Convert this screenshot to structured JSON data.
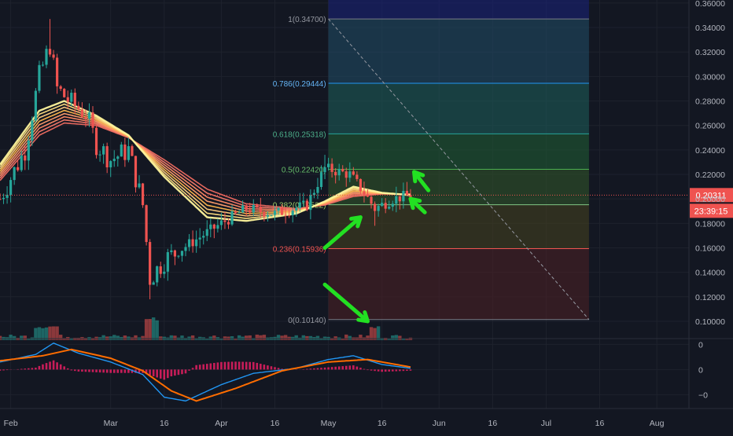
{
  "colors": {
    "background": "#131722",
    "grid": "#1e222d",
    "up": "#26a69a",
    "down": "#ef5350",
    "axis_text": "#b2b5be",
    "price_line": "#ef5350",
    "arrow": "#22e022",
    "macd": "#2196f3",
    "signal": "#ff6d00",
    "hist_pos": "#e91e63"
  },
  "chart_data": [
    {
      "type": "candlestick",
      "title": "",
      "x_axis": {
        "tick_labels": [
          "Feb",
          "Mar",
          "16",
          "Apr",
          "16",
          "May",
          "16",
          "Jun",
          "16",
          "Jul",
          "16",
          "Aug"
        ],
        "dates": [
          "2019-02-01",
          "2019-03-01",
          "2019-03-16",
          "2019-04-01",
          "2019-04-16",
          "2019-05-01",
          "2019-05-16",
          "2019-06-01",
          "2019-06-16",
          "2019-07-01",
          "2019-07-16",
          "2019-08-01"
        ],
        "range": [
          "2019-01-29",
          "2019-08-10"
        ]
      },
      "y_axis": {
        "tick_labels": [
          "0.36000",
          "0.34000",
          "0.32000",
          "0.30000",
          "0.28000",
          "0.26000",
          "0.24000",
          "0.22000",
          "0.20000",
          "0.18000",
          "0.16000",
          "0.14000",
          "0.12000",
          "0.10000"
        ],
        "ticks": [
          0.36,
          0.34,
          0.32,
          0.3,
          0.28,
          0.26,
          0.24,
          0.22,
          0.2,
          0.18,
          0.16,
          0.14,
          0.12,
          0.1
        ],
        "range": [
          0.0865,
          0.3625
        ]
      },
      "last_price": {
        "value": 0.20311,
        "label": "0.20311",
        "countdown": "23:39:15"
      },
      "price_key_points": [
        {
          "date": "2019-01-29",
          "close": 0.2
        },
        {
          "date": "2019-02-05",
          "close": 0.24
        },
        {
          "date": "2019-02-09",
          "close": 0.3
        },
        {
          "date": "2019-02-12",
          "close": 0.326
        },
        {
          "date": "2019-02-14",
          "close": 0.29
        },
        {
          "date": "2019-02-18",
          "close": 0.278
        },
        {
          "date": "2019-02-22",
          "close": 0.27
        },
        {
          "date": "2019-02-25",
          "close": 0.245
        },
        {
          "date": "2019-03-01",
          "close": 0.232
        },
        {
          "date": "2019-03-06",
          "close": 0.24
        },
        {
          "date": "2019-03-10",
          "close": 0.195
        },
        {
          "date": "2019-03-12",
          "close": 0.135
        },
        {
          "date": "2019-03-16",
          "close": 0.15
        },
        {
          "date": "2019-03-24",
          "close": 0.165
        },
        {
          "date": "2019-04-01",
          "close": 0.18
        },
        {
          "date": "2019-04-08",
          "close": 0.192
        },
        {
          "date": "2019-04-16",
          "close": 0.188
        },
        {
          "date": "2019-04-25",
          "close": 0.195
        },
        {
          "date": "2019-04-30",
          "close": 0.225
        },
        {
          "date": "2019-05-07",
          "close": 0.22
        },
        {
          "date": "2019-05-11",
          "close": 0.205
        },
        {
          "date": "2019-05-14",
          "close": 0.192
        },
        {
          "date": "2019-05-19",
          "close": 0.2
        },
        {
          "date": "2019-05-24",
          "close": 0.203
        }
      ],
      "ema_ribbon": {
        "count": 8,
        "colors": [
          "#fff59d",
          "#ffe082",
          "#ffcc80",
          "#ffb74d",
          "#ff9e6e",
          "#ff8a65",
          "#f4796a",
          "#ef6b61"
        ],
        "fast_key_points": [
          {
            "date": "2019-01-29",
            "value": 0.228
          },
          {
            "date": "2019-02-09",
            "value": 0.272
          },
          {
            "date": "2019-02-16",
            "value": 0.28
          },
          {
            "date": "2019-02-25",
            "value": 0.268
          },
          {
            "date": "2019-03-06",
            "value": 0.252
          },
          {
            "date": "2019-03-16",
            "value": 0.218
          },
          {
            "date": "2019-03-28",
            "value": 0.185
          },
          {
            "date": "2019-04-08",
            "value": 0.182
          },
          {
            "date": "2019-04-22",
            "value": 0.188
          },
          {
            "date": "2019-04-30",
            "value": 0.198
          },
          {
            "date": "2019-05-08",
            "value": 0.21
          },
          {
            "date": "2019-05-16",
            "value": 0.205
          },
          {
            "date": "2019-05-24",
            "value": 0.203
          }
        ],
        "slow_key_points": [
          {
            "date": "2019-01-29",
            "value": 0.215
          },
          {
            "date": "2019-02-09",
            "value": 0.252
          },
          {
            "date": "2019-02-16",
            "value": 0.262
          },
          {
            "date": "2019-02-25",
            "value": 0.26
          },
          {
            "date": "2019-03-06",
            "value": 0.25
          },
          {
            "date": "2019-03-16",
            "value": 0.232
          },
          {
            "date": "2019-03-28",
            "value": 0.208
          },
          {
            "date": "2019-04-08",
            "value": 0.196
          },
          {
            "date": "2019-04-22",
            "value": 0.192
          },
          {
            "date": "2019-04-30",
            "value": 0.195
          },
          {
            "date": "2019-05-08",
            "value": 0.202
          },
          {
            "date": "2019-05-16",
            "value": 0.204
          },
          {
            "date": "2019-05-24",
            "value": 0.204
          }
        ]
      },
      "fibonacci": {
        "start_date": "2019-05-01",
        "end_date": "2019-07-13",
        "levels": [
          {
            "ratio": 1,
            "value": 0.347,
            "label": "1(0.34700)",
            "line": "#787b86",
            "fill": "#787b86",
            "text": "#9598a1"
          },
          {
            "ratio": 0.786,
            "value": 0.29444,
            "label": "0.786(0.29444)",
            "line": "#2196f3",
            "fill": "#1f4a63",
            "text": "#64b5f6"
          },
          {
            "ratio": 0.618,
            "value": 0.25318,
            "label": "0.618(0.25318)",
            "line": "#26a69a",
            "fill": "#1c5a56",
            "text": "#4caf8a"
          },
          {
            "ratio": 0.5,
            "value": 0.2242,
            "label": "0.5(0.22420)",
            "line": "#4caf50",
            "fill": "#1f5a33",
            "text": "#66bb6a"
          },
          {
            "ratio": 0.382,
            "value": 0.19522,
            "label": "0.382(0.19522)",
            "line": "#81c784",
            "fill": "#31532a",
            "text": "#9ccc65"
          },
          {
            "ratio": 0.236,
            "value": 0.15936,
            "label": "0.236(0.15936)",
            "line": "#ef5350",
            "fill": "#42401f",
            "text": "#ef5350"
          },
          {
            "ratio": 0,
            "value": 0.1014,
            "label": "0(0.10140)",
            "line": "#787b86",
            "fill": "#4a1f25",
            "text": "#9598a1"
          }
        ],
        "top_band_fill": "#1a237e",
        "trend_line": {
          "from": {
            "date": "2019-05-01",
            "value": 0.347
          },
          "to": {
            "date": "2019-07-13",
            "value": 0.1014
          }
        }
      },
      "annotations": [
        {
          "type": "arrow",
          "color": "#22e022",
          "direction": "up-right",
          "tail": {
            "date": "2019-04-30",
            "value": 0.16
          },
          "head": {
            "date": "2019-05-10",
            "value": 0.185
          }
        },
        {
          "type": "arrow",
          "color": "#22e022",
          "direction": "down-right",
          "tail": {
            "date": "2019-04-30",
            "value": 0.13
          },
          "head": {
            "date": "2019-05-12",
            "value": 0.1
          }
        },
        {
          "type": "arrow",
          "color": "#22e022",
          "direction": "up-left",
          "tail": {
            "date": "2019-05-29",
            "value": 0.207
          },
          "head": {
            "date": "2019-05-25",
            "value": 0.222
          }
        },
        {
          "type": "arrow",
          "color": "#22e022",
          "direction": "up-left",
          "tail": {
            "date": "2019-05-28",
            "value": 0.189
          },
          "head": {
            "date": "2019-05-24",
            "value": 0.2
          }
        }
      ],
      "volume": {
        "max_value": 1.0,
        "relative_bars": "sampled per candle"
      }
    },
    {
      "type": "line",
      "title": "",
      "x_axis": {
        "range": [
          "2019-01-29",
          "2019-08-10"
        ]
      },
      "y_axis": {
        "tick_labels": [
          "0",
          "0",
          "−0"
        ],
        "ticks": [
          1,
          0,
          -1
        ],
        "range": [
          -1.55,
          1.2
        ]
      },
      "series": [
        {
          "values_key_points": [
            {
              "date": "2019-01-29",
              "value": 0.3
            },
            {
              "date": "2019-02-08",
              "value": 0.6
            },
            {
              "date": "2019-02-13",
              "value": 1.05
            },
            {
              "date": "2019-02-20",
              "value": 0.65
            },
            {
              "date": "2019-03-01",
              "value": 0.3
            },
            {
              "date": "2019-03-10",
              "value": -0.2
            },
            {
              "date": "2019-03-16",
              "value": -1.1
            },
            {
              "date": "2019-03-22",
              "value": -1.25
            },
            {
              "date": "2019-04-01",
              "value": -0.6
            },
            {
              "date": "2019-04-10",
              "value": -0.15
            },
            {
              "date": "2019-04-22",
              "value": 0.05
            },
            {
              "date": "2019-05-01",
              "value": 0.4
            },
            {
              "date": "2019-05-08",
              "value": 0.55
            },
            {
              "date": "2019-05-16",
              "value": 0.2
            },
            {
              "date": "2019-05-24",
              "value": 0.05
            }
          ]
        },
        {
          "values_key_points": [
            {
              "date": "2019-01-29",
              "value": 0.35
            },
            {
              "date": "2019-02-10",
              "value": 0.55
            },
            {
              "date": "2019-02-18",
              "value": 0.8
            },
            {
              "date": "2019-03-01",
              "value": 0.45
            },
            {
              "date": "2019-03-10",
              "value": -0.05
            },
            {
              "date": "2019-03-18",
              "value": -0.85
            },
            {
              "date": "2019-03-25",
              "value": -1.25
            },
            {
              "date": "2019-04-05",
              "value": -0.75
            },
            {
              "date": "2019-04-18",
              "value": -0.05
            },
            {
              "date": "2019-05-01",
              "value": 0.3
            },
            {
              "date": "2019-05-12",
              "value": 0.4
            },
            {
              "date": "2019-05-24",
              "value": 0.1
            }
          ]
        }
      ]
    }
  ]
}
